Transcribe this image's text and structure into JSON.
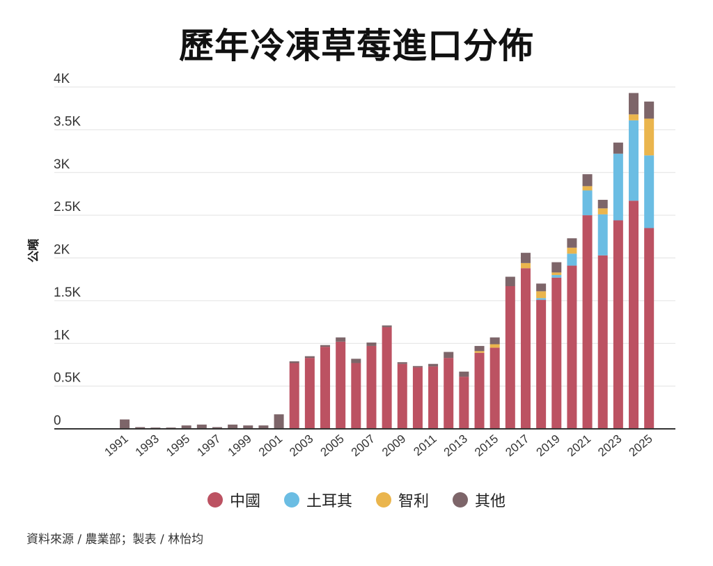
{
  "title": "歷年冷凍草莓進口分佈",
  "source": "資料來源 / 農業部；製表 / 林怡均",
  "colors": {
    "china": "#bc5262",
    "turkey": "#6bbde3",
    "chile": "#eab54d",
    "other": "#7d6569",
    "grid": "#e2e2e2",
    "axis": "#333333"
  },
  "chart_data": {
    "type": "bar",
    "stacked": true,
    "title": "歷年冷凍草莓進口分佈",
    "ylabel": "公噸",
    "xlabel": "",
    "ylim": [
      0,
      4000
    ],
    "y_ticks": [
      {
        "value": 0,
        "label": "0"
      },
      {
        "value": 500,
        "label": "0.5K"
      },
      {
        "value": 1000,
        "label": "1K"
      },
      {
        "value": 1500,
        "label": "1.5K"
      },
      {
        "value": 2000,
        "label": "2K"
      },
      {
        "value": 2500,
        "label": "2.5K"
      },
      {
        "value": 3000,
        "label": "3K"
      },
      {
        "value": 3500,
        "label": "3.5K"
      },
      {
        "value": 4000,
        "label": "4K"
      }
    ],
    "grid": true,
    "legend_position": "bottom",
    "categories": [
      "1991",
      "1992",
      "1993",
      "1994",
      "1995",
      "1996",
      "1997",
      "1998",
      "1999",
      "2000",
      "2001",
      "2002",
      "2003",
      "2004",
      "2005",
      "2006",
      "2007",
      "2008",
      "2009",
      "2010",
      "2011",
      "2012",
      "2013",
      "2014",
      "2015",
      "2016",
      "2017",
      "2018",
      "2019",
      "2020",
      "2021",
      "2022",
      "2023",
      "2024",
      "2025"
    ],
    "x_tick_labels": [
      "1991",
      "1993",
      "1995",
      "1997",
      "1999",
      "2001",
      "2003",
      "2005",
      "2007",
      "2009",
      "2011",
      "2013",
      "2015",
      "2017",
      "2019",
      "2021",
      "2023",
      "2025"
    ],
    "series": [
      {
        "name": "中國",
        "color_key": "china",
        "values": [
          0,
          0,
          0,
          0,
          0,
          0,
          0,
          0,
          0,
          0,
          0,
          770,
          830,
          960,
          1020,
          770,
          970,
          1190,
          760,
          720,
          730,
          830,
          610,
          890,
          950,
          1670,
          1880,
          1510,
          1770,
          1910,
          2500,
          2030,
          2440,
          2670,
          2350
        ]
      },
      {
        "name": "土耳其",
        "color_key": "turkey",
        "values": [
          0,
          0,
          0,
          0,
          0,
          0,
          0,
          0,
          0,
          0,
          0,
          0,
          0,
          0,
          0,
          0,
          0,
          0,
          0,
          0,
          0,
          0,
          0,
          0,
          0,
          0,
          0,
          20,
          30,
          140,
          290,
          480,
          780,
          940,
          850
        ]
      },
      {
        "name": "智利",
        "color_key": "chile",
        "values": [
          0,
          0,
          0,
          0,
          0,
          0,
          0,
          0,
          0,
          0,
          0,
          0,
          0,
          0,
          0,
          0,
          0,
          0,
          0,
          0,
          0,
          0,
          0,
          20,
          40,
          0,
          60,
          80,
          30,
          70,
          50,
          70,
          0,
          70,
          430
        ]
      },
      {
        "name": "其他",
        "color_key": "other",
        "values": [
          110,
          20,
          15,
          15,
          40,
          50,
          20,
          50,
          40,
          40,
          170,
          20,
          20,
          20,
          50,
          50,
          40,
          20,
          20,
          15,
          30,
          70,
          60,
          60,
          80,
          110,
          120,
          90,
          120,
          110,
          140,
          100,
          130,
          250,
          200
        ]
      }
    ]
  }
}
